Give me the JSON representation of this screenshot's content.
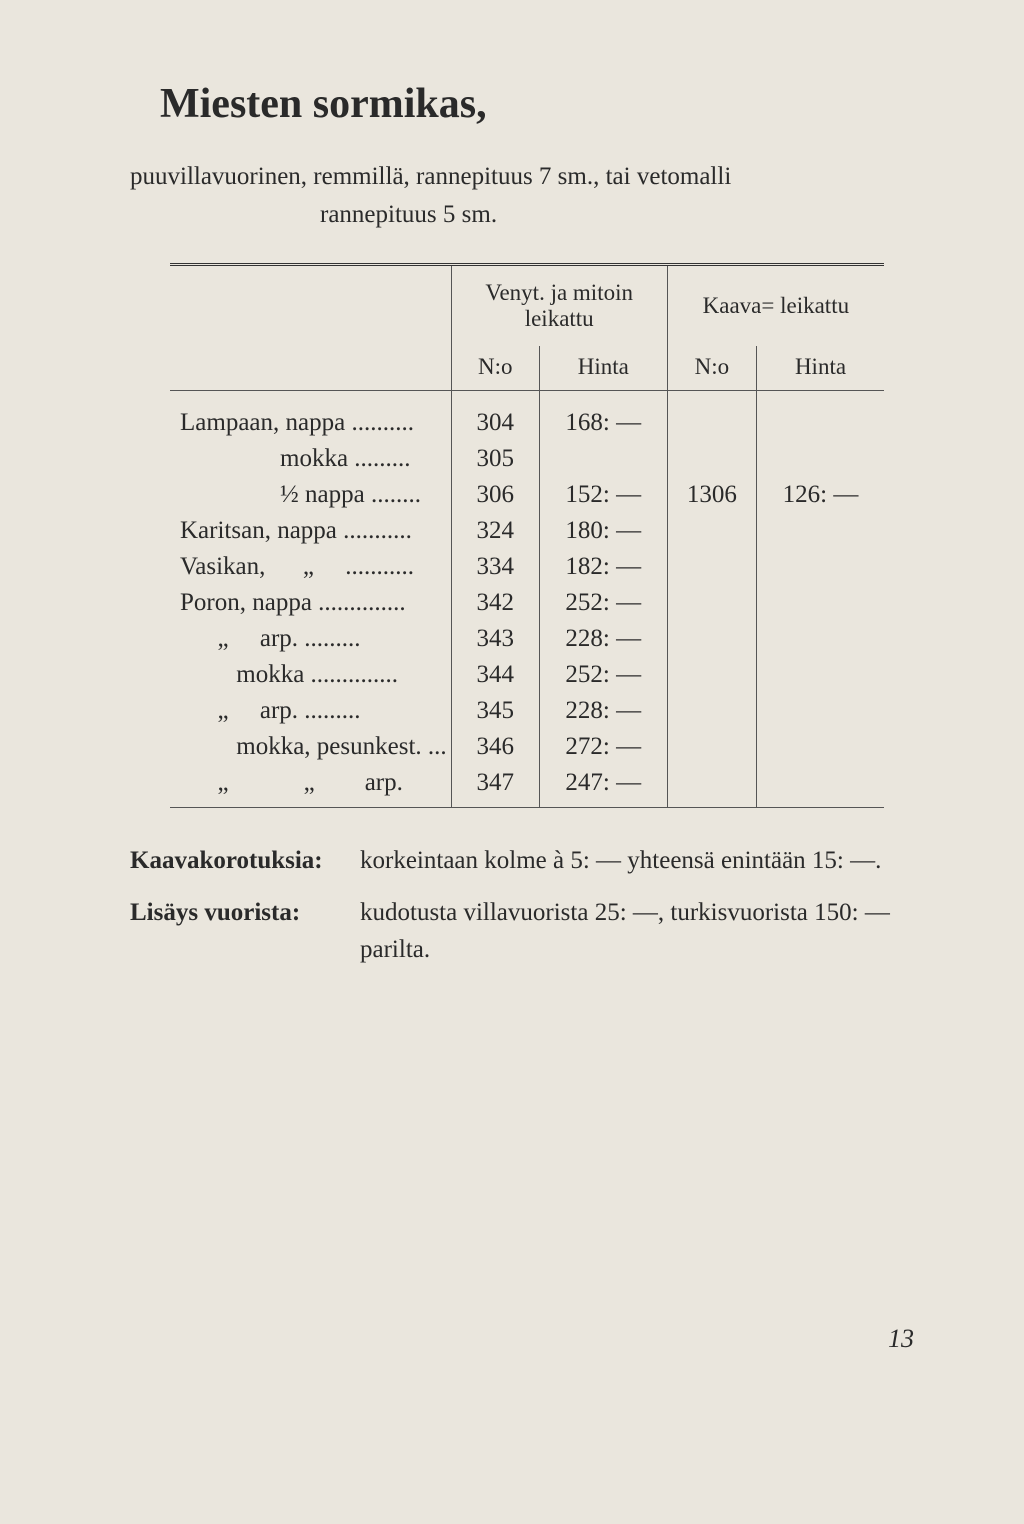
{
  "title": "Miesten sormikas,",
  "intro_line1": "puuvillavuorinen, remmillä, rannepituus 7 sm., tai vetomalli",
  "intro_line2": "rannepituus 5 sm.",
  "headers": {
    "group1": "Venyt. ja mitoin leikattu",
    "group2": "Kaava= leikattu",
    "no": "N:o",
    "price": "Hinta"
  },
  "rows": [
    {
      "label": "Lampaan, nappa ..........",
      "no": "304",
      "price": "168: —",
      "no2": "",
      "price2": ""
    },
    {
      "label": "                mokka .........",
      "no": "305",
      "price": "",
      "no2": "",
      "price2": ""
    },
    {
      "label": "                ½ nappa ........",
      "no": "306",
      "price": "152: —",
      "no2": "1306",
      "price2": "126: —"
    },
    {
      "label": "Karitsan, nappa ...........",
      "no": "324",
      "price": "180: —",
      "no2": "",
      "price2": ""
    },
    {
      "label": "Vasikan,      „     ...........",
      "no": "334",
      "price": "182: —",
      "no2": "",
      "price2": ""
    },
    {
      "label": "Poron, nappa ..............",
      "no": "342",
      "price": "252: —",
      "no2": "",
      "price2": ""
    },
    {
      "label": "      „     arp. .........",
      "no": "343",
      "price": "228: —",
      "no2": "",
      "price2": ""
    },
    {
      "label": "         mokka ..............",
      "no": "344",
      "price": "252: —",
      "no2": "",
      "price2": ""
    },
    {
      "label": "      „     arp. .........",
      "no": "345",
      "price": "228: —",
      "no2": "",
      "price2": ""
    },
    {
      "label": "         mokka, pesunkest. ...",
      "no": "346",
      "price": "272: —",
      "no2": "",
      "price2": ""
    },
    {
      "label": "      „            „        arp.",
      "no": "347",
      "price": "247: —",
      "no2": "",
      "price2": ""
    }
  ],
  "notes": [
    {
      "label": "Kaavakorotuksia:",
      "body": "korkeintaan kolme à 5: — yhteensä enintään 15: —."
    },
    {
      "label": "Lisäys vuorista:",
      "body": "kudotusta villavuorista 25: —, turkisvuorista 150: — parilta."
    }
  ],
  "page_number": "13"
}
